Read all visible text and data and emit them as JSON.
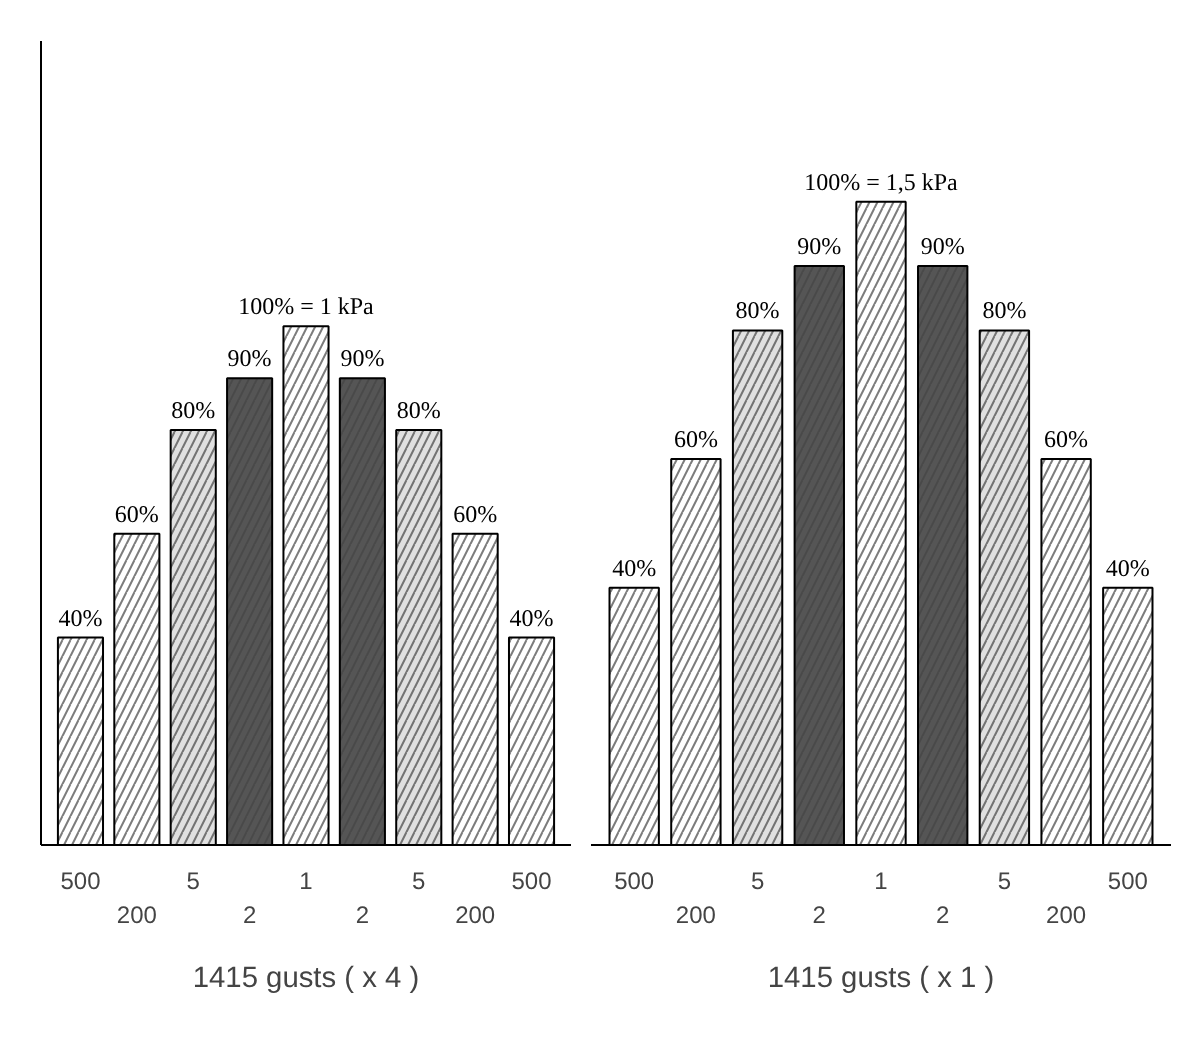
{
  "chart_data": [
    {
      "type": "bar",
      "categories": [
        "500",
        "200",
        "5",
        "2",
        "1",
        "2",
        "5",
        "200",
        "500"
      ],
      "values": [
        40,
        60,
        80,
        90,
        100,
        90,
        80,
        60,
        40
      ],
      "colors": [
        "#ffffff",
        "#ffffff",
        "#e0e0e0",
        "#555555",
        "#ffffff",
        "#555555",
        "#e0e0e0",
        "#ffffff",
        "#ffffff"
      ],
      "value_labels": [
        "40%",
        "60%",
        "80%",
        "90%",
        "100% = 1 kPa",
        "90%",
        "80%",
        "60%",
        "40%"
      ],
      "xlabel": "1415 gusts ( x 4 )"
    },
    {
      "type": "bar",
      "categories": [
        "500",
        "200",
        "5",
        "2",
        "1",
        "2",
        "5",
        "200",
        "500"
      ],
      "values": [
        40,
        60,
        80,
        90,
        100,
        90,
        80,
        60,
        40
      ],
      "colors": [
        "#ffffff",
        "#ffffff",
        "#e0e0e0",
        "#555555",
        "#ffffff",
        "#555555",
        "#e0e0e0",
        "#ffffff",
        "#ffffff"
      ],
      "value_labels": [
        "40%",
        "60%",
        "80%",
        "90%",
        "100% = 1,5 kPa",
        "90%",
        "80%",
        "60%",
        "40%"
      ],
      "xlabel": "1415 gusts ( x 1 )"
    }
  ]
}
